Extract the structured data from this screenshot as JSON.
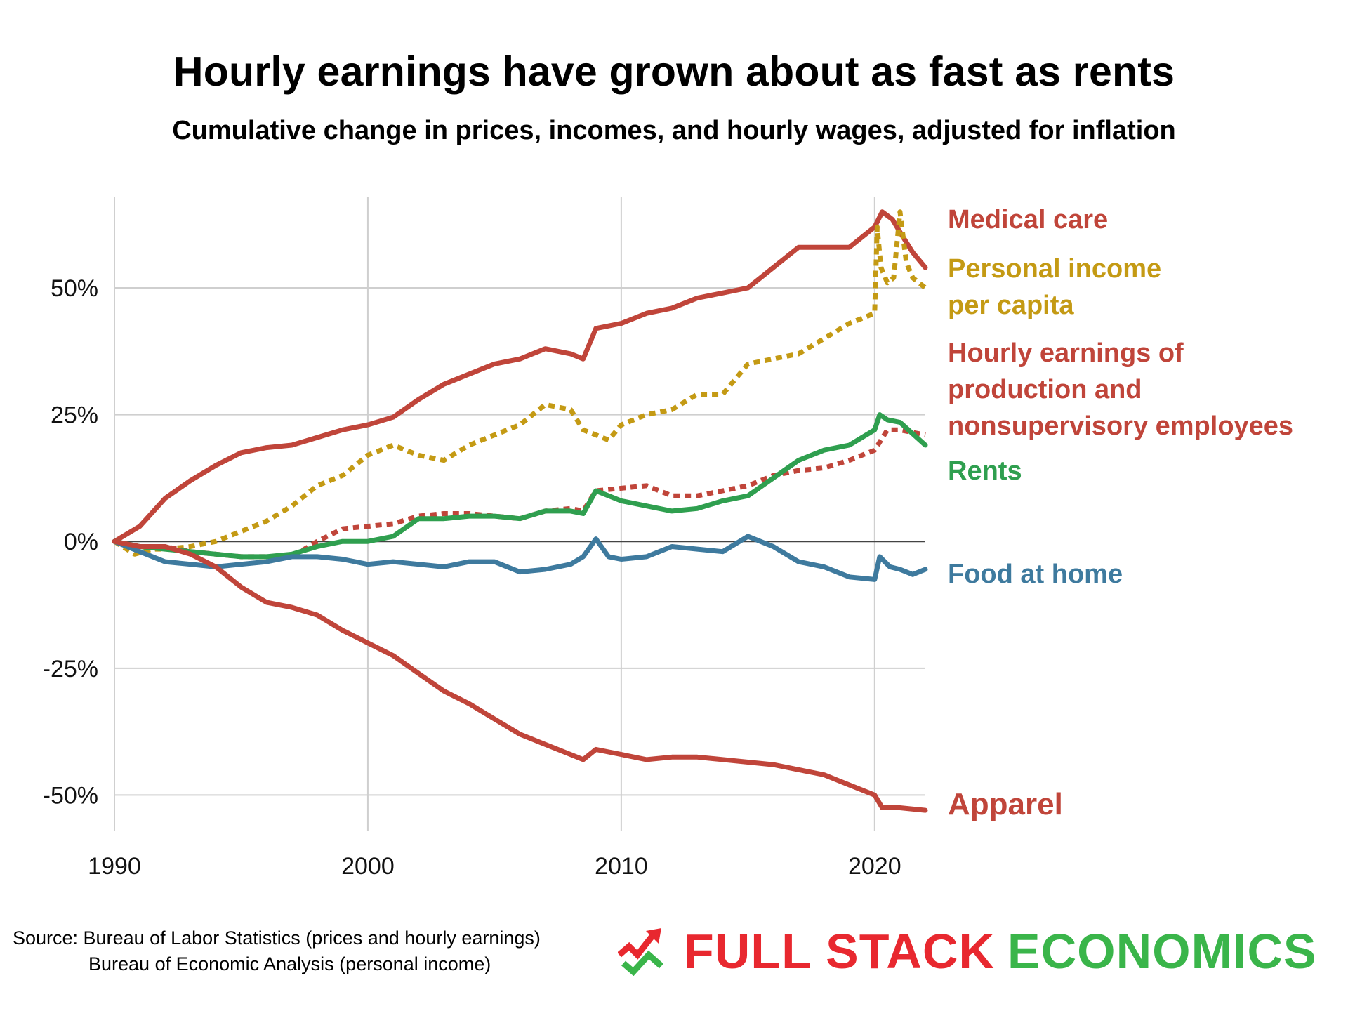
{
  "title": "Hourly earnings have grown about as fast as rents",
  "subtitle": "Cumulative change in prices, incomes, and hourly wages, adjusted for inflation",
  "source": {
    "line1": "Source: Bureau of Labor Statistics (prices and hourly earnings)",
    "line2": "Bureau of Economic Analysis (personal income)"
  },
  "logo": {
    "word1": "FULL STACK",
    "word2": "ECONOMICS",
    "color1": "#e8282f",
    "color2": "#3ab54a"
  },
  "chart_data": {
    "type": "line",
    "title": "Hourly earnings have grown about as fast as rents",
    "subtitle": "Cumulative change in prices, incomes, and hourly wages, adjusted for inflation",
    "xlabel": "",
    "ylabel": "",
    "xlim": [
      1990,
      2022
    ],
    "ylim": [
      -57,
      68
    ],
    "grid": true,
    "legend": "direct labels at right",
    "x_ticks": [
      1990,
      2000,
      2010,
      2020
    ],
    "x_tick_labels": [
      "1990",
      "2000",
      "2010",
      "2020"
    ],
    "y_ticks": [
      -50,
      -25,
      0,
      25,
      50
    ],
    "y_tick_labels": [
      "-50%",
      "-25%",
      "0%",
      "25%",
      "50%"
    ],
    "series": [
      {
        "name": "Medical care",
        "label_lines": [
          "Medical care"
        ],
        "color": "#c0453a",
        "dashed": false,
        "x": [
          1990,
          1991,
          1992,
          1993,
          1994,
          1995,
          1996,
          1997,
          1998,
          1999,
          2000,
          2001,
          2002,
          2003,
          2004,
          2005,
          2006,
          2007,
          2008,
          2008.5,
          2009,
          2010,
          2011,
          2012,
          2013,
          2014,
          2015,
          2016,
          2017,
          2018,
          2019,
          2020,
          2020.3,
          2020.7,
          2021,
          2021.5,
          2022
        ],
        "y": [
          0,
          3,
          8.5,
          12,
          15,
          17.5,
          18.5,
          19,
          20.5,
          22,
          23,
          24.5,
          28,
          31,
          33,
          35,
          36,
          38,
          37,
          36,
          42,
          43,
          45,
          46,
          48,
          49,
          50,
          54,
          58,
          58,
          58,
          62,
          65,
          63.5,
          61,
          57,
          54
        ]
      },
      {
        "name": "Personal income per capita",
        "label_lines": [
          "Personal income",
          "per capita"
        ],
        "color": "#c49a14",
        "dashed": true,
        "x": [
          1990,
          1990.8,
          1991.5,
          1992,
          1993,
          1994,
          1995,
          1996,
          1997,
          1998,
          1999,
          2000,
          2001,
          2002,
          2003,
          2004,
          2005,
          2006,
          2007,
          2008,
          2008.5,
          2009,
          2009.5,
          2010,
          2011,
          2012,
          2013,
          2014,
          2015,
          2016,
          2017,
          2018,
          2019,
          2020,
          2020.1,
          2020.25,
          2020.5,
          2020.75,
          2021,
          2021.25,
          2021.5,
          2022
        ],
        "y": [
          0,
          -2.5,
          -1.5,
          -1.5,
          -1,
          0,
          2,
          4,
          7,
          11,
          13,
          17,
          19,
          17,
          16,
          19,
          21,
          23,
          27,
          26,
          22,
          21,
          20,
          23,
          25,
          26,
          29,
          29,
          35,
          36,
          37,
          40,
          43,
          45,
          62,
          54,
          51,
          52,
          65,
          55,
          52,
          50
        ]
      },
      {
        "name": "Hourly earnings of production and nonsupervisory employees",
        "label_lines": [
          "Hourly earnings of",
          "production and",
          "nonsupervisory employees"
        ],
        "color": "#c0453a",
        "dashed": true,
        "x": [
          1990,
          1991,
          1992,
          1993,
          1994,
          1995,
          1996,
          1997,
          1998,
          1999,
          2000,
          2001,
          2002,
          2003,
          2004,
          2005,
          2006,
          2007,
          2008,
          2008.5,
          2009,
          2010,
          2011,
          2012,
          2013,
          2014,
          2015,
          2016,
          2017,
          2018,
          2019,
          2020,
          2020.5,
          2021,
          2022
        ],
        "y": [
          0,
          -1,
          -1,
          -2,
          -2.5,
          -3,
          -3,
          -3,
          0,
          2.5,
          3,
          3.5,
          5,
          5.5,
          5.5,
          5,
          4.5,
          6,
          6.5,
          6,
          10,
          10.5,
          11,
          9,
          9,
          10,
          11,
          13,
          14,
          14.5,
          16,
          18,
          22,
          22,
          21
        ]
      },
      {
        "name": "Rents",
        "label_lines": [
          "Rents"
        ],
        "color": "#2f9f4f",
        "dashed": false,
        "x": [
          1990,
          1991,
          1992,
          1993,
          1994,
          1995,
          1996,
          1997,
          1998,
          1999,
          2000,
          2001,
          2002,
          2003,
          2004,
          2005,
          2006,
          2007,
          2008,
          2008.5,
          2009,
          2010,
          2011,
          2012,
          2013,
          2014,
          2015,
          2016,
          2017,
          2018,
          2019,
          2020,
          2020.2,
          2020.5,
          2021,
          2022
        ],
        "y": [
          0,
          -1,
          -1.5,
          -2,
          -2.5,
          -3,
          -3,
          -2.5,
          -1,
          0,
          0,
          1,
          4.5,
          4.5,
          5,
          5,
          4.5,
          6,
          6,
          5.5,
          10,
          8,
          7,
          6,
          6.5,
          8,
          9,
          12.5,
          16,
          18,
          19,
          22,
          25,
          24,
          23.5,
          19
        ]
      },
      {
        "name": "Food at home",
        "label_lines": [
          "Food at home"
        ],
        "color": "#3e7a9e",
        "dashed": false,
        "x": [
          1990,
          1991,
          1992,
          1993,
          1994,
          1995,
          1996,
          1997,
          1998,
          1999,
          2000,
          2001,
          2002,
          2003,
          2004,
          2005,
          2006,
          2007,
          2008,
          2008.5,
          2009,
          2009.5,
          2010,
          2011,
          2012,
          2013,
          2014,
          2015,
          2016,
          2017,
          2018,
          2019,
          2020,
          2020.2,
          2020.6,
          2021,
          2021.5,
          2022
        ],
        "y": [
          0,
          -2,
          -4,
          -4.5,
          -5,
          -4.5,
          -4,
          -3,
          -3,
          -3.5,
          -4.5,
          -4,
          -4.5,
          -5,
          -4,
          -4,
          -6,
          -5.5,
          -4.5,
          -3,
          0.5,
          -3,
          -3.5,
          -3,
          -1,
          -1.5,
          -2,
          1,
          -1,
          -4,
          -5,
          -7,
          -7.5,
          -3,
          -5,
          -5.5,
          -6.5,
          -5.5
        ]
      },
      {
        "name": "Apparel",
        "label_lines": [
          "Apparel"
        ],
        "color": "#c0453a",
        "dashed": false,
        "x": [
          1990,
          1991,
          1992,
          1993,
          1994,
          1995,
          1996,
          1997,
          1998,
          1999,
          2000,
          2001,
          2002,
          2003,
          2004,
          2005,
          2006,
          2007,
          2008,
          2008.5,
          2009,
          2010,
          2011,
          2012,
          2013,
          2014,
          2015,
          2016,
          2017,
          2018,
          2019,
          2020,
          2020.3,
          2021,
          2022
        ],
        "y": [
          0,
          -1,
          -1,
          -2.5,
          -5,
          -9,
          -12,
          -13,
          -14.5,
          -17.5,
          -20,
          -22.5,
          -26,
          -29.5,
          -32,
          -35,
          -38,
          -40,
          -42,
          -43,
          -41,
          -42,
          -43,
          -42.5,
          -42.5,
          -43,
          -43.5,
          -44,
          -45,
          -46,
          -48,
          -50,
          -52.5,
          -52.5,
          -53
        ]
      }
    ]
  }
}
